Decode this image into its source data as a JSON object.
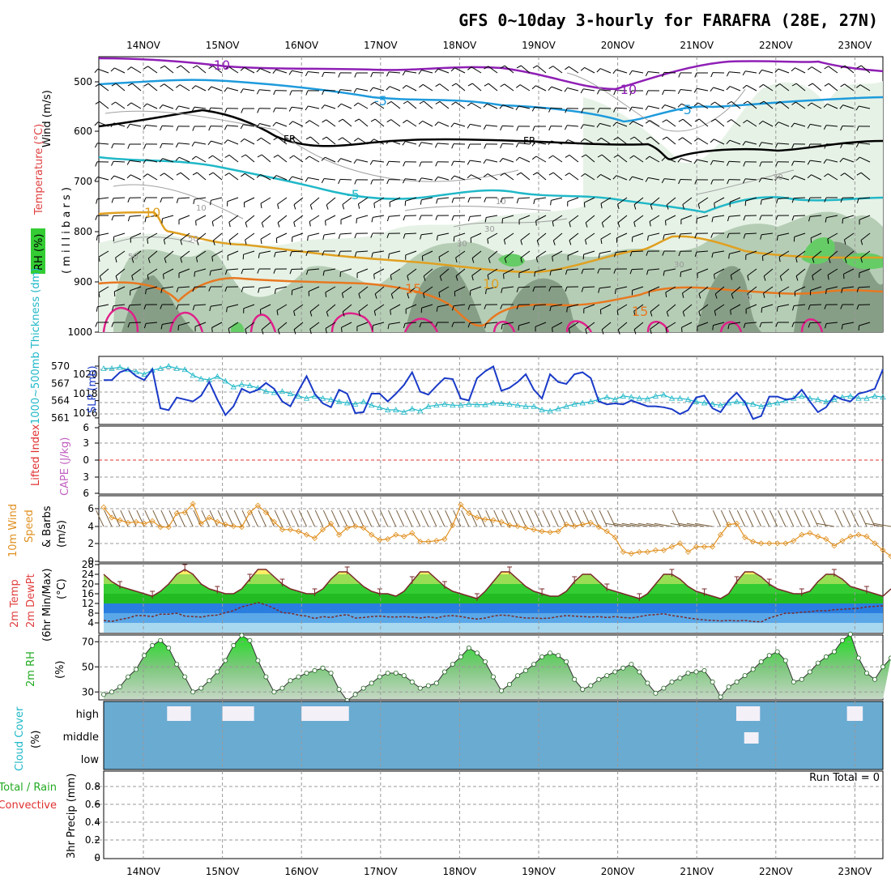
{
  "title": "GFS 0~10day 3-hourly for FARAFRA (28E, 27N)",
  "dates": [
    "14NOV",
    "15NOV",
    "16NOV",
    "17NOV",
    "18NOV",
    "19NOV",
    "20NOV",
    "21NOV",
    "22NOV",
    "23NOV"
  ],
  "colors": {
    "grid": "#999999",
    "rh_light": "#e6f2e6",
    "rh_mid": "#b5cdb5",
    "rh_dark": "#869e86",
    "rh_green": "#66cc66",
    "iso_purple": "#8f1fb5",
    "iso_blue": "#1e9bdc",
    "iso_teal": "#20b8c8",
    "iso_black": "#000000",
    "iso_gold": "#e0a020",
    "iso_orange": "#e87820",
    "iso_magenta": "#e0208a",
    "slp": "#1a3ac8",
    "thickness": "#20b8c8",
    "lifted": "#e03030",
    "wind_speed": "#e09020",
    "temp_line": "#7a2a2a",
    "cloud_bg": "#6aabd2",
    "cloud_fill": "#f4f0f8",
    "precip_text": "#000000"
  },
  "panels": {
    "upper": {
      "ylabel_wind": "Wind (m/s)",
      "ylabel_temp": "Temperature (°C)",
      "ylabel_rh": "RH (%)",
      "ylabel_p": "( m i l l i b a r s )",
      "ticks": [
        "500",
        "600",
        "700",
        "800",
        "900",
        "1000"
      ],
      "isotherm_labels": [
        "-10",
        "-10",
        "-5",
        "-5",
        "FR",
        "FR",
        "-5",
        "10",
        "10",
        "15",
        "15",
        "50",
        "50",
        "30",
        "30",
        "10",
        "10",
        "30",
        "50",
        "30"
      ]
    },
    "slp": {
      "ylabel_slp": "SLP (mb)",
      "ylabel_thick": "1000~500mb Thickness (dm)",
      "left_ticks": [
        "570",
        "567",
        "564",
        "561"
      ],
      "right_ticks": [
        "1020",
        "1018",
        "1016"
      ]
    },
    "cape": {
      "ylabel_li": "Lifted Index",
      "ylabel_cape": "CAPE (J/kg)",
      "ticks": [
        "6",
        "3",
        "0",
        "3",
        "6"
      ]
    },
    "wind10": {
      "ylabel1": "10m Wind",
      "ylabel2": "Speed",
      "ylabel3": "& Barbs",
      "ylabel4": "(m/s)",
      "ticks": [
        "6",
        "4",
        "2",
        "0"
      ]
    },
    "temp2m": {
      "ylabel1": "2m Temp",
      "ylabel2": "2m DewPt",
      "ylabel3": "(6hr Min/Max)",
      "ylabel4": "(°C)",
      "ticks": [
        "28",
        "24",
        "20",
        "16",
        "12",
        "8",
        "4"
      ]
    },
    "rh2m": {
      "ylabel1": "2m RH",
      "ylabel2": "(%)",
      "ticks": [
        "70",
        "50",
        "30"
      ]
    },
    "cloud": {
      "ylabel1": "Cloud Cover",
      "ylabel2": "(%)",
      "levels": [
        "high",
        "middle",
        "low"
      ]
    },
    "precip": {
      "ylabel1": "Total / Rain",
      "ylabel2": "Convective",
      "ylabel3": "3hr Precip (mm)",
      "run_total": "Run Total = 0",
      "ticks": [
        "0.8",
        "0.6",
        "0.4",
        "0.2",
        "0"
      ]
    }
  },
  "chart_data": [
    {
      "type": "line",
      "name": "SLP",
      "y_unit": "mb",
      "x_step_hours": 3,
      "values": [
        1019.4,
        1019.4,
        1020.2,
        1020.5,
        1019.8,
        1019.4,
        1020.5,
        1016.5,
        1016.3,
        1017.6,
        1017.4,
        1017.2,
        1017.8,
        1019.2,
        1017.4,
        1015.8,
        1016.7,
        1018.5,
        1018.1,
        1018.4,
        1019.1,
        1018.5,
        1017.2,
        1016.7,
        1018.3,
        1019.8,
        1018.0,
        1017.0,
        1016.6,
        1018.4,
        1018.0,
        1016.0,
        1016.1,
        1018.0,
        1018.0,
        1017.2,
        1018.0,
        1018.9,
        1020.2,
        1018.2,
        1017.9,
        1018.8,
        1019.6,
        1019.5,
        1017.5,
        1017.3,
        1019.6,
        1020.3,
        1020.8,
        1018.3,
        1018.6,
        1019.2,
        1020.0,
        1018.4,
        1017.5,
        1020.0,
        1019.2,
        1019.0,
        1020.0,
        1020.2,
        1019.6,
        1017.2,
        1016.9,
        1017.0,
        1016.9,
        1017.3,
        1017.0,
        1016.7,
        1016.7,
        1016.6,
        1016.4,
        1015.9,
        1016.3,
        1017.6,
        1017.8,
        1016.5,
        1016.1,
        1017.3,
        1018.1,
        1017.1,
        1015.4,
        1015.7,
        1017.7,
        1017.7,
        1017.4,
        1017.5,
        1018.4,
        1017.2,
        1016.1,
        1016.6,
        1017.8,
        1017.4,
        1017.2,
        1018.0,
        1018.2,
        1018.5,
        1020.5
      ]
    },
    {
      "type": "line",
      "name": "1000~500mb Thickness",
      "y_unit": "dm",
      "x_step_hours": 3,
      "values": [
        569.6,
        569.6,
        569.8,
        569.4,
        569.0,
        568.6,
        569.3,
        569.6,
        570.0,
        569.6,
        569.4,
        568.4,
        567.8,
        567.6,
        568.2,
        567.4,
        566.4,
        566.8,
        566.6,
        566.2,
        565.6,
        565.4,
        565.6,
        565.2,
        564.8,
        564.4,
        564.8,
        564.4,
        564.2,
        563.8,
        563.6,
        563.4,
        563.8,
        563.2,
        562.8,
        562.4,
        562.4,
        562.0,
        562.6,
        562.2,
        563.0,
        563.2,
        563.4,
        563.2,
        563.2,
        563.4,
        563.3,
        563.3,
        563.6,
        563.5,
        563.4,
        563.2,
        563.0,
        563.0,
        562.4,
        562.2,
        562.6,
        563.0,
        563.4,
        563.6,
        563.8,
        564.2,
        564.6,
        564.2,
        564.8,
        564.6,
        564.4,
        564.3,
        564.8,
        565.0,
        564.4,
        564.4,
        564.2,
        563.8,
        563.6,
        563.4,
        563.2,
        563.6,
        563.8,
        563.6,
        563.4,
        563.0,
        563.4,
        563.6,
        564.0,
        564.4,
        564.8,
        564.4,
        564.2,
        563.8,
        564.2,
        564.6,
        564.8,
        564.4,
        564.4,
        564.8,
        564.6
      ]
    },
    {
      "type": "line",
      "name": "10m Wind Speed",
      "y_unit": "m/s",
      "x_step_hours": 3,
      "values": [
        6.2,
        5.0,
        4.7,
        4.4,
        4.5,
        4.3,
        4.6,
        3.9,
        3.9,
        5.5,
        5.6,
        6.6,
        4.3,
        5.0,
        4.5,
        4.2,
        4.0,
        3.9,
        5.6,
        6.4,
        5.6,
        4.5,
        3.6,
        3.6,
        3.4,
        3.0,
        2.6,
        3.6,
        4.3,
        3.0,
        3.8,
        4.0,
        3.8,
        3.0,
        2.4,
        2.5,
        3.0,
        2.8,
        3.2,
        2.2,
        2.2,
        2.3,
        2.5,
        4.1,
        6.5,
        5.5,
        5.0,
        4.8,
        4.7,
        4.5,
        4.1,
        4.0,
        3.8,
        3.6,
        3.4,
        3.3,
        3.4,
        4.2,
        4.0,
        4.2,
        4.4,
        3.9,
        3.4,
        2.7,
        1.0,
        0.8,
        1.0,
        1.0,
        1.2,
        1.2,
        1.6,
        2.0,
        1.0,
        1.6,
        1.6,
        1.6,
        3.0,
        4.2,
        4.3,
        2.7,
        2.2,
        2.0,
        2.0,
        2.0,
        2.0,
        2.3,
        3.0,
        3.2,
        2.8,
        2.5,
        1.7,
        2.3,
        2.8,
        3.0,
        2.8,
        2.0,
        1.2,
        0.5
      ]
    },
    {
      "type": "area",
      "name": "2m Temp",
      "y_unit": "°C",
      "x_step_hours": 3,
      "values": [
        24,
        21,
        19,
        18,
        17,
        16,
        15,
        17,
        20,
        24,
        26,
        24,
        20,
        18,
        17,
        16,
        16,
        18,
        22,
        26,
        26,
        23,
        20,
        18,
        17,
        16,
        16,
        18,
        22,
        25,
        25,
        22,
        19,
        17,
        16,
        16,
        15,
        17,
        21,
        25,
        25,
        22,
        19,
        17,
        16,
        15,
        14,
        17,
        21,
        25,
        25,
        22,
        19,
        17,
        16,
        15,
        15,
        17,
        21,
        24,
        24,
        21,
        18,
        17,
        16,
        15,
        14,
        16,
        20,
        24,
        24,
        22,
        19,
        17,
        16,
        15,
        14,
        16,
        21,
        25,
        25,
        23,
        20,
        18,
        17,
        16,
        16,
        17,
        21,
        24,
        24,
        22,
        19,
        18,
        17,
        16,
        15,
        18
      ]
    },
    {
      "type": "line",
      "name": "2m DewPt",
      "y_unit": "°C",
      "x_step_hours": 3,
      "values": [
        5.0,
        4.6,
        5.4,
        6.0,
        7.0,
        7.0,
        6.6,
        7.6,
        7.6,
        8.0,
        6.8,
        6.6,
        6.4,
        7.0,
        7.2,
        8.2,
        9.0,
        10.6,
        11.4,
        12.4,
        11.4,
        10.0,
        8.2,
        8.0,
        7.2,
        6.8,
        5.8,
        6.6,
        6.2,
        7.0,
        7.4,
        6.0,
        6.2,
        6.6,
        6.8,
        6.5,
        6.4,
        6.6,
        6.4,
        6.0,
        6.5,
        6.0,
        6.8,
        7.0,
        6.6,
        6.0,
        5.6,
        6.0,
        6.8,
        7.2,
        7.0,
        6.4,
        6.0,
        6.0,
        5.8,
        6.0,
        6.6,
        7.0,
        6.8,
        6.6,
        6.4,
        6.6,
        6.2,
        6.6,
        6.2,
        6.0,
        6.6,
        7.2,
        7.4,
        7.8,
        7.0,
        6.6,
        6.0,
        5.6,
        5.2,
        5.0,
        4.8,
        5.0,
        4.8,
        5.0,
        4.6,
        4.4,
        6.0,
        7.0,
        8.0,
        8.0,
        8.4,
        8.6,
        9.0,
        9.0,
        9.4,
        9.6,
        9.8,
        10.0,
        10.6,
        10.8,
        11.0
      ]
    },
    {
      "type": "area",
      "name": "2m RH",
      "y_unit": "%",
      "x_step_hours": 3,
      "values": [
        28,
        30,
        34,
        42,
        48,
        59,
        67,
        71,
        65,
        52,
        42,
        30,
        33,
        39,
        46,
        55,
        67,
        75,
        71,
        55,
        42,
        30,
        33,
        39,
        42,
        45,
        47,
        49,
        45,
        32,
        23,
        28,
        33,
        37,
        42,
        45,
        45,
        43,
        38,
        33,
        35,
        37,
        46,
        52,
        58,
        65,
        61,
        54,
        42,
        31,
        36,
        43,
        47,
        52,
        58,
        61,
        59,
        54,
        40,
        32,
        35,
        40,
        43,
        46,
        49,
        52,
        46,
        37,
        29,
        33,
        38,
        41,
        45,
        46,
        47,
        38,
        26,
        34,
        38,
        43,
        48,
        54,
        59,
        62,
        55,
        38,
        40,
        46,
        53,
        58,
        62,
        71,
        76,
        57,
        45,
        40,
        50,
        57
      ]
    },
    {
      "type": "table",
      "name": "Cloud Cover",
      "levels": [
        "high",
        "middle",
        "low"
      ],
      "high_blocks_days": [
        [
          14.3,
          14.6
        ],
        [
          15.0,
          15.4
        ],
        [
          16.0,
          16.6
        ],
        [
          21.5,
          21.8
        ],
        [
          22.9,
          23.1
        ]
      ],
      "middle_blocks_days": [
        [
          21.6,
          21.7
        ]
      ]
    },
    {
      "type": "bar",
      "name": "3hr Precip",
      "y_unit": "mm",
      "values": [],
      "ylim": [
        0,
        0.9
      ]
    }
  ]
}
